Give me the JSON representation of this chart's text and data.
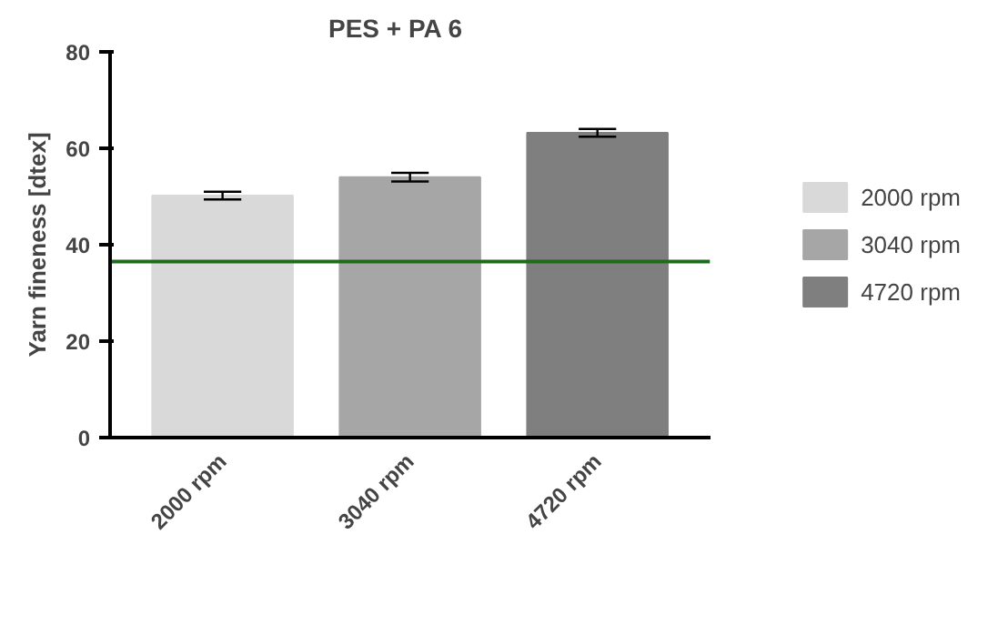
{
  "chart_data": {
    "type": "bar",
    "title": "PES + PA 6",
    "ylabel": "Yarn fineness [dtex]",
    "categories": [
      "2000 rpm",
      "3040 rpm",
      "4720 rpm"
    ],
    "stacked": true,
    "series": [
      {
        "name": "2000 rpm",
        "color": "#d9d9d9",
        "values": [
          50.2,
          null,
          null
        ],
        "errors": [
          0.8,
          null,
          null
        ]
      },
      {
        "name": "3040 rpm",
        "color": "#a6a6a6",
        "values": [
          null,
          54.0,
          null
        ],
        "errors": [
          null,
          0.9,
          null
        ]
      },
      {
        "name": "4720 rpm",
        "color": "#7f7f7f",
        "values": [
          null,
          null,
          63.2
        ],
        "errors": [
          null,
          null,
          0.8
        ]
      }
    ],
    "ylim": [
      0,
      80
    ],
    "yticks": [
      0,
      20,
      40,
      60,
      80
    ],
    "ref_lines": [
      {
        "axis": "y",
        "value": 36.5,
        "color": "#1e6b1e"
      }
    ],
    "legend": "right"
  }
}
